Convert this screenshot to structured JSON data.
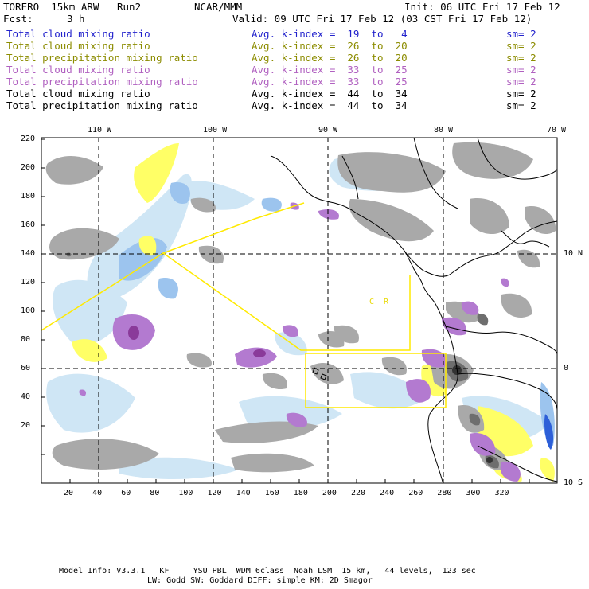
{
  "header": {
    "model": "TORERO  15km ARW   Run2",
    "org": "NCAR/MMM",
    "init": "Init: 06 UTC Fri 17 Feb 12",
    "fcst_label": "Fcst:",
    "fcst_value": "3 h",
    "valid": "Valid: 09 UTC Fri 17 Feb 12 (03 CST Fri 17 Feb 12)"
  },
  "legend": [
    {
      "field": "Total cloud mixing ratio",
      "kindex": "Avg. k-index =  19  to   4",
      "sm": "sm= 2",
      "color": "#2222cc"
    },
    {
      "field": "Total cloud mixing ratio",
      "kindex": "Avg. k-index =  26  to  20",
      "sm": "sm= 2",
      "color": "#8c8c00"
    },
    {
      "field": "Total precipitation mixing ratio",
      "kindex": "Avg. k-index =  26  to  20",
      "sm": "sm= 2",
      "color": "#8c8c00"
    },
    {
      "field": "Total cloud mixing ratio",
      "kindex": "Avg. k-index =  33  to  25",
      "sm": "sm= 2",
      "color": "#b060c0"
    },
    {
      "field": "Total precipitation mixing ratio",
      "kindex": "Avg. k-index =  33  to  25",
      "sm": "sm= 2",
      "color": "#b060c0"
    },
    {
      "field": "Total cloud mixing ratio",
      "kindex": "Avg. k-index =  44  to  34",
      "sm": "sm= 2",
      "color": "#000000"
    },
    {
      "field": "Total precipitation mixing ratio",
      "kindex": "Avg. k-index =  44  to  34",
      "sm": "sm= 2",
      "color": "#000000"
    }
  ],
  "axes": {
    "lon_labels": [
      "110 W",
      "100 W",
      "90 W",
      "80 W",
      "70 W"
    ],
    "lat_labels": [
      "10 N",
      "0",
      "10 S"
    ],
    "x_ticks": [
      "20",
      "40",
      "60",
      "80",
      "100",
      "120",
      "140",
      "160",
      "180",
      "200",
      "220",
      "240",
      "260",
      "280",
      "300",
      "320"
    ],
    "y_ticks": [
      "220",
      "200",
      "180",
      "160",
      "140",
      "120",
      "100",
      "80",
      "60",
      "40",
      "20"
    ]
  },
  "annotations": {
    "cr_label": "C  R"
  },
  "footer": {
    "line1": "Model Info: V3.3.1   KF     YSU PBL  WDM 6class  Noah LSM  15 km,   44 levels,  123 sec",
    "line2": "LW: Godd SW: Goddard DIFF: simple KM: 2D Smagor"
  }
}
